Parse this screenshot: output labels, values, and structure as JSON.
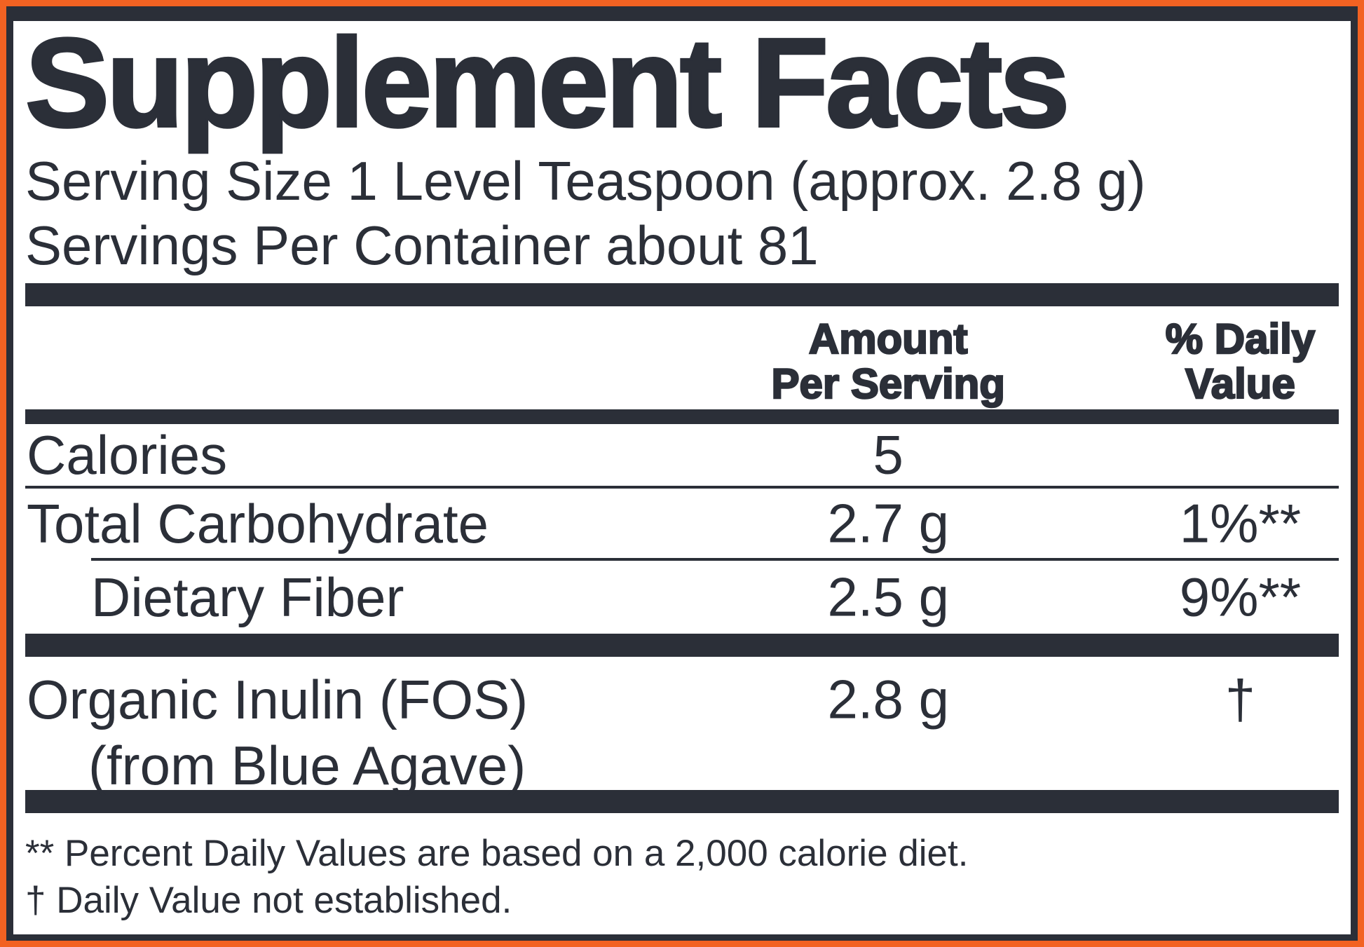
{
  "colors": {
    "border_orange": "#F26222",
    "ink": "#2B2F38",
    "background": "#FFFFFF"
  },
  "title": "Supplement Facts",
  "serving_info": {
    "serving_size": "Serving Size 1 Level Teaspoon (approx. 2.8 g)",
    "servings_per_container": "Servings Per Container about 81"
  },
  "table": {
    "header": {
      "amount_line1": "Amount",
      "amount_line2": "Per Serving",
      "daily_value_line1": "% Daily",
      "daily_value_line2": "Value"
    },
    "rows": [
      {
        "label": "Calories",
        "amount": "5",
        "daily_value": ""
      },
      {
        "label": "Total Carbohydrate",
        "amount": "2.7 g",
        "daily_value": "1%**"
      },
      {
        "label": "Dietary Fiber",
        "amount": "2.5 g",
        "daily_value": "9%**",
        "indented": true
      },
      {
        "label": "Organic Inulin (FOS)",
        "label_line2": "(from Blue Agave)",
        "amount": "2.8 g",
        "daily_value": "†"
      }
    ]
  },
  "footnotes": {
    "daily_values_note": "** Percent Daily Values are based on a 2,000 calorie diet.",
    "not_established_note": "† Daily Value not established."
  }
}
